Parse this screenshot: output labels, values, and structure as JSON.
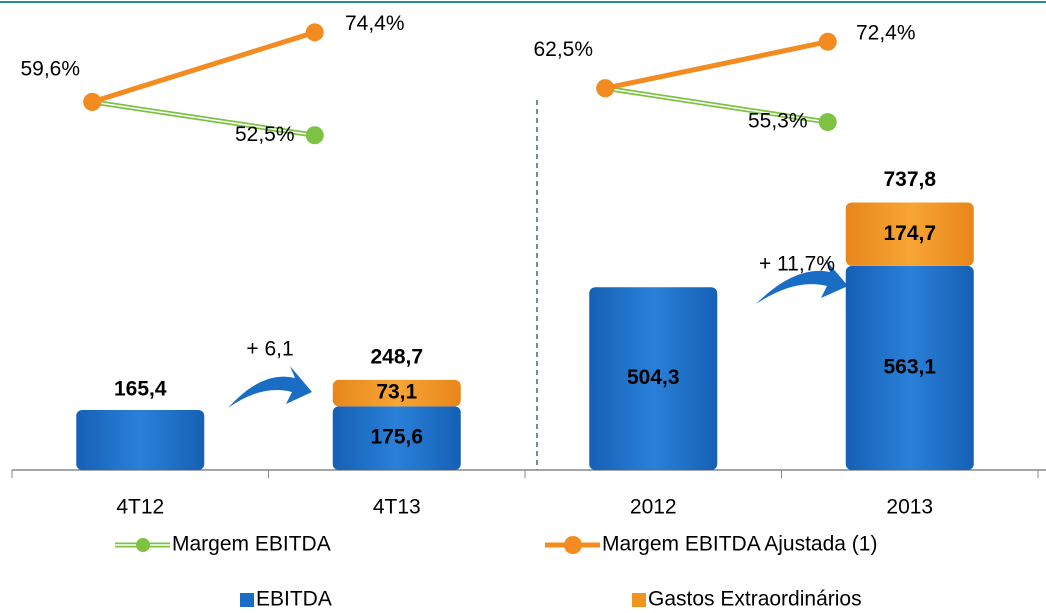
{
  "chart_data": {
    "type": "bar",
    "categories": [
      "4T12",
      "4T13",
      "2012",
      "2013"
    ],
    "ylim": [
      0,
      800
    ],
    "y2lim": [
      40,
      80
    ],
    "series": [
      {
        "name": "EBITDA",
        "color": "#1a6dc4",
        "values": [
          165.4,
          175.6,
          504.3,
          563.1
        ],
        "value_labels": [
          "165,4",
          "175,6",
          "504,3",
          "563,1"
        ]
      },
      {
        "name": "Gastos Extraordinários",
        "color": "#f29420",
        "values": [
          null,
          73.1,
          null,
          174.7
        ],
        "value_labels": [
          null,
          "73,1",
          null,
          "174,7"
        ]
      },
      {
        "name": "Margem EBITDA",
        "type": "line",
        "axis": "y2",
        "color": "#7dc242",
        "values": [
          59.6,
          52.5,
          62.5,
          55.3
        ],
        "value_labels": [
          null,
          "52,5%",
          null,
          "55,3%"
        ]
      },
      {
        "name": "Margem EBITDA Ajustada (1)",
        "type": "line",
        "axis": "y2",
        "color": "#f38b20",
        "values": [
          59.6,
          74.4,
          62.5,
          72.4
        ],
        "value_labels": [
          "59,6%",
          "74,4%",
          "62,5%",
          "72,4%"
        ]
      }
    ],
    "totals": {
      "values": [
        null,
        248.7,
        null,
        737.8
      ],
      "value_labels": [
        null,
        "248,7",
        null,
        "737,8"
      ]
    },
    "annotations": [
      "+ 6,1",
      "+ 11,7%"
    ]
  }
}
